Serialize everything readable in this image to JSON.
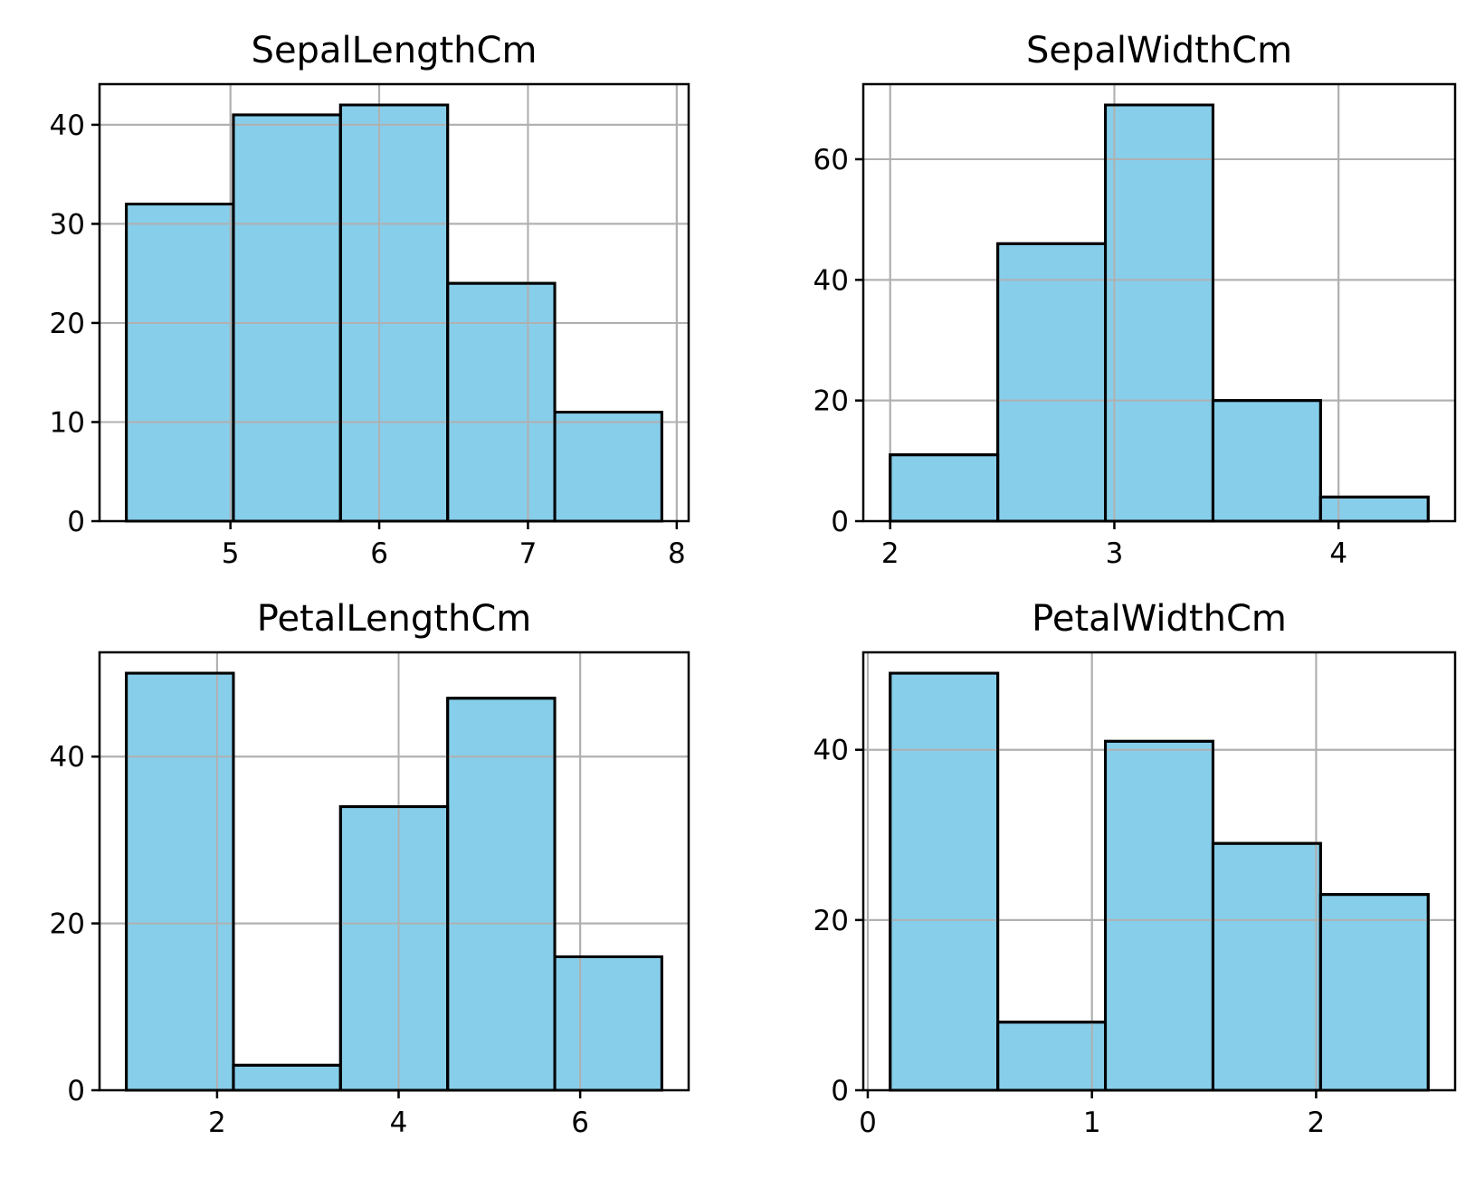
{
  "chart_data": [
    {
      "type": "bar",
      "title": "SepalLengthCm",
      "xlabel": "",
      "ylabel": "",
      "bin_edges": [
        4.3,
        5.02,
        5.74,
        6.46,
        7.18,
        7.9
      ],
      "values": [
        32,
        41,
        42,
        24,
        11
      ],
      "xlim": [
        4.12,
        8.08
      ],
      "ylim": [
        0,
        44.1
      ],
      "xticks": [
        5,
        6,
        7,
        8
      ],
      "xtick_labels": [
        "5",
        "6",
        "7",
        "8"
      ],
      "yticks": [
        0,
        10,
        20,
        30,
        40
      ],
      "ytick_labels": [
        "0",
        "10",
        "20",
        "30",
        "40"
      ],
      "grid": true,
      "bar_color": "#87ceeb",
      "edge_color": "#000000"
    },
    {
      "type": "bar",
      "title": "SepalWidthCm",
      "xlabel": "",
      "ylabel": "",
      "bin_edges": [
        2.0,
        2.48,
        2.96,
        3.44,
        3.92,
        4.4
      ],
      "values": [
        11,
        46,
        69,
        20,
        4
      ],
      "xlim": [
        1.88,
        4.52
      ],
      "ylim": [
        0,
        72.45
      ],
      "xticks": [
        2,
        3,
        4
      ],
      "xtick_labels": [
        "2",
        "3",
        "4"
      ],
      "yticks": [
        0,
        20,
        40,
        60
      ],
      "ytick_labels": [
        "0",
        "20",
        "40",
        "60"
      ],
      "grid": true,
      "bar_color": "#87ceeb",
      "edge_color": "#000000"
    },
    {
      "type": "bar",
      "title": "PetalLengthCm",
      "xlabel": "",
      "ylabel": "",
      "bin_edges": [
        1.0,
        2.18,
        3.36,
        4.54,
        5.72,
        6.9
      ],
      "values": [
        50,
        3,
        34,
        47,
        16
      ],
      "xlim": [
        0.705,
        7.195
      ],
      "ylim": [
        0,
        52.5
      ],
      "xticks": [
        2,
        4,
        6
      ],
      "xtick_labels": [
        "2",
        "4",
        "6"
      ],
      "yticks": [
        0,
        20,
        40
      ],
      "ytick_labels": [
        "0",
        "20",
        "40"
      ],
      "grid": true,
      "bar_color": "#87ceeb",
      "edge_color": "#000000"
    },
    {
      "type": "bar",
      "title": "PetalWidthCm",
      "xlabel": "",
      "ylabel": "",
      "bin_edges": [
        0.1,
        0.58,
        1.06,
        1.54,
        2.02,
        2.5
      ],
      "values": [
        49,
        8,
        41,
        29,
        23
      ],
      "xlim": [
        -0.02,
        2.62
      ],
      "ylim": [
        0,
        51.45
      ],
      "xticks": [
        0,
        1,
        2
      ],
      "xtick_labels": [
        "0",
        "1",
        "2"
      ],
      "yticks": [
        0,
        20,
        40
      ],
      "ytick_labels": [
        "0",
        "20",
        "40"
      ],
      "grid": true,
      "bar_color": "#87ceeb",
      "edge_color": "#000000"
    }
  ]
}
